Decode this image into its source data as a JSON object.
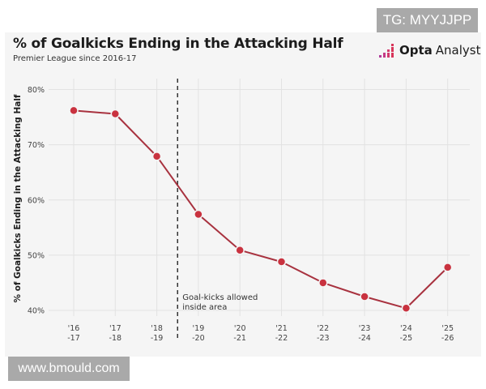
{
  "watermarks": {
    "top": "TG: MYYJJPP",
    "bottom": "www.bmould.com"
  },
  "header": {
    "title": "% of Goalkicks Ending in the Attacking Half",
    "subtitle": "Premier League since 2016-17",
    "brand_name": "Opta",
    "brand_sub": "Analyst"
  },
  "colors": {
    "line": "#a8323f",
    "marker": "#c9323f",
    "grid": "#e2e2e2",
    "panel": "#f5f5f5"
  },
  "chart_data": {
    "type": "line",
    "title": "% of Goalkicks Ending in the Attacking Half",
    "subtitle": "Premier League since 2016-17",
    "xlabel": "",
    "ylabel": "% of Goalkicks Ending in the Attacking Half",
    "ylim": [
      40,
      80
    ],
    "grid": true,
    "yticks": [
      {
        "value": 80,
        "label": "80%"
      },
      {
        "value": 70,
        "label": "70%"
      },
      {
        "value": 60,
        "label": "60%"
      },
      {
        "value": 50,
        "label": "50%"
      },
      {
        "value": 40,
        "label": "40%"
      }
    ],
    "categories": [
      {
        "line1": "'16",
        "line2": "-17"
      },
      {
        "line1": "'17",
        "line2": "-18"
      },
      {
        "line1": "'18",
        "line2": "-19"
      },
      {
        "line1": "'19",
        "line2": "-20"
      },
      {
        "line1": "'20",
        "line2": "-21"
      },
      {
        "line1": "'21",
        "line2": "-22"
      },
      {
        "line1": "'22",
        "line2": "-23"
      },
      {
        "line1": "'23",
        "line2": "-24"
      },
      {
        "line1": "'24",
        "line2": "-25"
      },
      {
        "line1": "'25",
        "line2": "-26"
      }
    ],
    "series": [
      {
        "name": "% of Goalkicks Ending in the Attacking Half",
        "values": [
          76.2,
          75.6,
          67.9,
          57.4,
          50.9,
          48.8,
          45.0,
          42.5,
          40.4,
          47.8
        ]
      }
    ],
    "annotation": {
      "between_categories": [
        2,
        3
      ],
      "line1": "Goal-kicks allowed",
      "line2": "inside area",
      "style": "dashed"
    }
  }
}
